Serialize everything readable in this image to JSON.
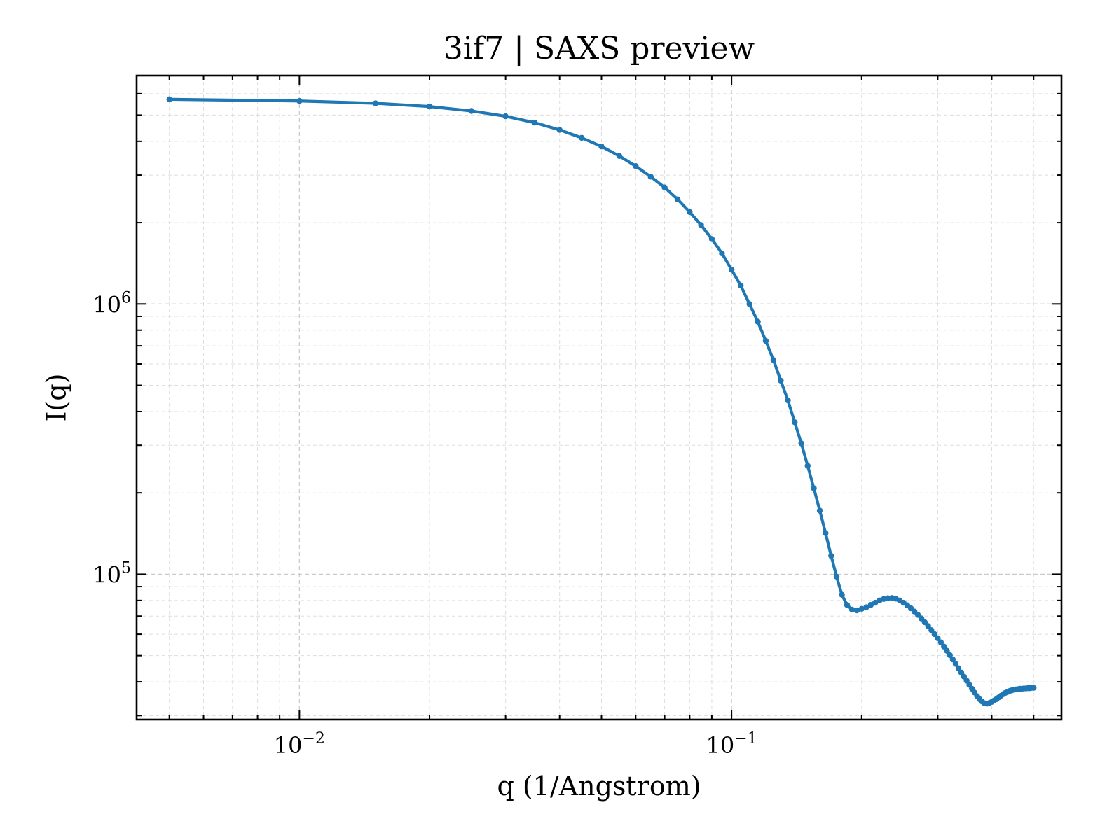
{
  "chart_data": {
    "type": "line",
    "title": "3if7 | SAXS preview",
    "xlabel": "q (1/Angstrom)",
    "ylabel": "I(q)",
    "xscale": "log",
    "yscale": "log",
    "xlim": [
      0.0042,
      0.58
    ],
    "ylim": [
      29000,
      7000000
    ],
    "grid": true,
    "legend": "none",
    "color": "#1f77b4",
    "x_ticks": [
      {
        "value": 0.01,
        "base": "10",
        "exp": "−2"
      },
      {
        "value": 0.1,
        "base": "10",
        "exp": "−1"
      }
    ],
    "y_ticks": [
      {
        "value": 100000,
        "base": "10",
        "exp": "5"
      },
      {
        "value": 1000000,
        "base": "10",
        "exp": "6"
      }
    ],
    "series": [
      {
        "x": [
          0.005,
          0.01,
          0.015,
          0.02,
          0.025,
          0.03,
          0.035,
          0.04,
          0.045,
          0.05,
          0.055,
          0.06,
          0.065,
          0.07,
          0.075,
          0.08,
          0.085,
          0.09,
          0.095,
          0.1,
          0.105,
          0.11,
          0.115,
          0.12,
          0.125,
          0.13,
          0.135,
          0.14,
          0.145,
          0.15,
          0.155,
          0.16,
          0.165,
          0.17,
          0.175,
          0.18,
          0.185,
          0.19,
          0.195,
          0.2,
          0.205,
          0.21,
          0.215,
          0.22,
          0.225,
          0.23,
          0.235,
          0.24,
          0.245,
          0.25,
          0.255,
          0.26,
          0.265,
          0.27,
          0.275,
          0.28,
          0.285,
          0.29,
          0.295,
          0.3,
          0.305,
          0.31,
          0.315,
          0.32,
          0.325,
          0.33,
          0.335,
          0.34,
          0.345,
          0.35,
          0.355,
          0.36,
          0.365,
          0.37,
          0.375,
          0.38,
          0.385,
          0.39,
          0.395,
          0.4,
          0.405,
          0.41,
          0.415,
          0.42,
          0.425,
          0.43,
          0.435,
          0.44,
          0.445,
          0.45,
          0.455,
          0.46,
          0.465,
          0.47,
          0.475,
          0.48,
          0.485,
          0.49,
          0.495,
          0.5
        ],
        "y": [
          5720000,
          5640000,
          5530000,
          5380000,
          5180000,
          4950000,
          4690000,
          4410000,
          4120000,
          3830000,
          3530000,
          3240000,
          2960000,
          2700000,
          2440000,
          2190000,
          1960000,
          1740000,
          1540000,
          1340000,
          1170000,
          1000000,
          860000,
          730000,
          620000,
          520000,
          440000,
          365000,
          305000,
          252000,
          208000,
          172000,
          142000,
          117000,
          98000,
          84000,
          77000,
          74000,
          73500,
          74500,
          75500,
          77000,
          78500,
          80000,
          81000,
          81500,
          81700,
          81200,
          80000,
          78500,
          76800,
          74800,
          72800,
          70700,
          68600,
          66400,
          64300,
          62100,
          60000,
          58000,
          56000,
          54000,
          52100,
          50200,
          48400,
          46600,
          44900,
          43300,
          41800,
          40400,
          39000,
          37700,
          36500,
          35400,
          34500,
          33800,
          33300,
          33200,
          33400,
          33700,
          34100,
          34500,
          35000,
          35500,
          36000,
          36400,
          36700,
          37000,
          37200,
          37400,
          37500,
          37600,
          37700,
          37700,
          37800,
          37800,
          37900,
          37900,
          38000,
          38000
        ]
      }
    ]
  }
}
